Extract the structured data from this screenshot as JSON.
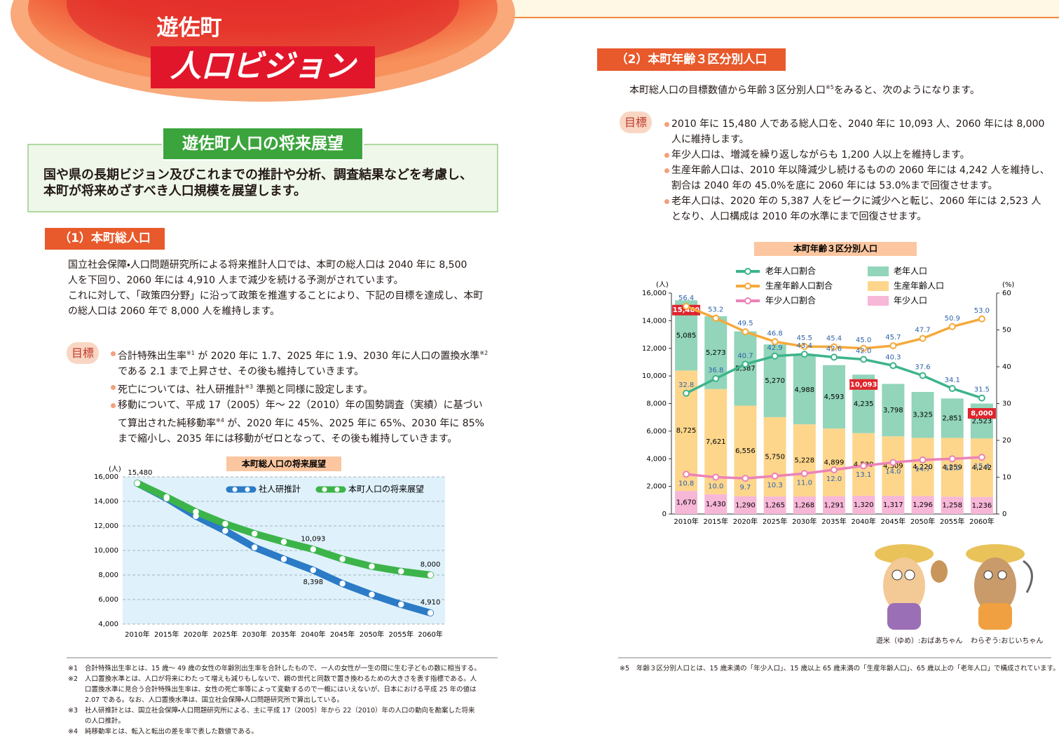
{
  "header": {
    "title_line1": "遊佐町",
    "title_line2": "人口ビジョン"
  },
  "outlook": {
    "heading": "遊佐町人口の将来展望",
    "lines": [
      [
        "国や県の長期ビジョン及びこれまでの推計や分析、調査結果などを考慮し、"
      ],
      [
        "本町が将来めざすべき人口規模を展望します。"
      ]
    ]
  },
  "section1": {
    "heading": "（1）本町総人口",
    "paragraph": [
      [
        "国立社会保障・人口問題研究所による将来推計人口では、本町の総人口は 2040 年に 8,500"
      ],
      [
        "人を下回り、2060 年には 4,910 人まで減少を続ける予測がされています。"
      ],
      [
        "これに対して、「政策四分野」に沿って政策を推進することにより、下記の目標を達成し、本町"
      ],
      [
        "の総人口は 2060 年で 8,000 人を維持します。"
      ]
    ],
    "goal_label": "目標",
    "goals": [
      [
        [
          "合計特殊出生率",
          "※1",
          " が 2020 年に 1.7、2025 年に 1.9、2030 年に人口の置換水準",
          "※2"
        ],
        [
          "である 2.1 まで上昇させ、その後も維持していきます。"
        ]
      ],
      [
        [
          "死亡については、社人研推計",
          "※3",
          " 準拠と同様に設定します。"
        ]
      ],
      [
        [
          "移動について、平成 17（2005）年～ 22（2010）年の国勢調査（実績）に基づい"
        ],
        [
          "て算出された純移動率",
          "※4",
          " が、2020 年に 45%、2025 年に 65%、2030 年に 85%"
        ],
        [
          "まで縮小し、2035 年には移動がゼロとなって、その後も維持していきます。"
        ]
      ]
    ]
  },
  "chart_data": [
    {
      "type": "line",
      "title": "本町総人口の将来展望",
      "y_unit": "(人)",
      "categories": [
        "2010年",
        "2015年",
        "2020年",
        "2025年",
        "2030年",
        "2035年",
        "2040年",
        "2045年",
        "2050年",
        "2055年",
        "2060年"
      ],
      "series": [
        {
          "name": "社人研推計",
          "color": "#2b7bc6",
          "values": [
            15480,
            14250,
            12800,
            11600,
            10250,
            9300,
            8398,
            7300,
            6400,
            5600,
            4910
          ],
          "value_labels": [
            null,
            null,
            null,
            null,
            null,
            null,
            "8,398",
            null,
            null,
            null,
            "4,910"
          ]
        },
        {
          "name": "本町人口の将来展望",
          "color": "#3cb44a",
          "values": [
            15480,
            14350,
            13150,
            12170,
            11370,
            10700,
            10093,
            9300,
            8700,
            8300,
            8000
          ],
          "value_labels": [
            "15,480",
            null,
            null,
            null,
            null,
            null,
            "10,093",
            null,
            null,
            null,
            "8,000"
          ]
        }
      ],
      "ylim": [
        4000,
        16000
      ],
      "yticks": [
        {
          "value": 4000,
          "label": "4,000"
        },
        {
          "value": 6000,
          "label": "6,000"
        },
        {
          "value": 8000,
          "label": "8,000"
        },
        {
          "value": 10000,
          "label": "10,000"
        },
        {
          "value": 12000,
          "label": "12,000"
        },
        {
          "value": 14000,
          "label": "14,000"
        },
        {
          "value": 16000,
          "label": "16,000"
        }
      ],
      "grid": true,
      "legend": "upper right"
    },
    {
      "type": "bar_line",
      "title": "本町年齢３区分別人口",
      "y_unit": "(人)",
      "y2_unit": "(%)",
      "categories": [
        "2010年",
        "2015年",
        "2020年",
        "2025年",
        "2030年",
        "2035年",
        "2040年",
        "2045年",
        "2050年",
        "2055年",
        "2060年"
      ],
      "series": [
        {
          "name": "年少人口",
          "type": "bar",
          "color": "#f7b7d7",
          "values": [
            1670,
            1430,
            1290,
            1265,
            1268,
            1291,
            1320,
            1317,
            1296,
            1258,
            1236
          ],
          "value_labels": [
            "1,670",
            "1,430",
            "1,290",
            "1,265",
            "1,268",
            "1,291",
            "1,320",
            "1,317",
            "1,296",
            "1,258",
            "1,236"
          ]
        },
        {
          "name": "生産年齢人口",
          "type": "bar",
          "color": "#fdd68c",
          "values": [
            8725,
            7621,
            6556,
            5750,
            5228,
            4899,
            4539,
            4309,
            4220,
            4259,
            4242
          ],
          "value_labels": [
            "8,725",
            "7,621",
            "6,556",
            "5,750",
            "5,228",
            "4,899",
            "4,539",
            "4,309",
            "4,220",
            "4,259",
            "4,242"
          ]
        },
        {
          "name": "老年人口",
          "type": "bar",
          "color": "#92d5ba",
          "values": [
            5085,
            5273,
            5387,
            5270,
            4988,
            4593,
            4235,
            3798,
            3325,
            2851,
            2523
          ],
          "value_labels": [
            "5,085",
            "5,273",
            "5,387",
            "5,270",
            "4,988",
            "4,593",
            "4,235",
            "3,798",
            "3,325",
            "2,851",
            "2,523"
          ]
        },
        {
          "name": "年少人口割合",
          "type": "line",
          "axis": "y2",
          "color": "#ec82b8",
          "values": [
            10.8,
            10.0,
            9.7,
            10.3,
            11.0,
            12.0,
            13.1,
            14.0,
            14.7,
            15.0,
            15.4
          ],
          "value_labels": [
            "10.8",
            "10.0",
            "9.7",
            "10.3",
            "11.0",
            "12.0",
            "13.1",
            "14.0",
            "14.7",
            "15.0",
            "15.4"
          ]
        },
        {
          "name": "生産年齢人口割合",
          "type": "line",
          "axis": "y2",
          "color": "#f5a93b",
          "values": [
            56.4,
            53.2,
            49.5,
            46.8,
            45.5,
            45.4,
            45.0,
            45.7,
            47.7,
            50.9,
            53.0
          ],
          "value_labels": [
            "56.4",
            "53.2",
            "49.5",
            "46.8",
            "45.5",
            "45.4",
            "45.0",
            "45.7",
            "47.7",
            "50.9",
            "53.0"
          ]
        },
        {
          "name": "老年人口割合",
          "type": "line",
          "axis": "y2",
          "color": "#3db48b",
          "values": [
            32.8,
            36.8,
            40.7,
            42.9,
            43.4,
            42.6,
            42.0,
            40.3,
            37.6,
            34.1,
            31.5
          ],
          "value_labels": [
            "32.8",
            "36.8",
            "40.7",
            "42.9",
            "43.4",
            "42.6",
            "42.0",
            "40.3",
            "37.6",
            "34.1",
            "31.5"
          ]
        }
      ],
      "totals": [
        15480,
        null,
        null,
        null,
        null,
        null,
        10093,
        null,
        null,
        null,
        8000
      ],
      "total_labels": [
        "15,480",
        null,
        null,
        null,
        null,
        null,
        "10,093",
        null,
        null,
        null,
        "8,000"
      ],
      "ylim": [
        0,
        16000
      ],
      "yticks": [
        0,
        {
          "value": 2000,
          "label": "2,000"
        },
        {
          "value": 4000,
          "label": "4,000"
        },
        {
          "value": 6000,
          "label": "6,000"
        },
        {
          "value": 8000,
          "label": "8,000"
        },
        {
          "value": 10000,
          "label": "10,000"
        },
        {
          "value": 12000,
          "label": "12,000"
        },
        {
          "value": 14000,
          "label": "14,000"
        },
        {
          "value": 16000,
          "label": "16,000"
        }
      ],
      "y2lim": [
        0,
        60
      ],
      "y2ticks": [
        0,
        10,
        20,
        30,
        40,
        50,
        60
      ],
      "grid": false,
      "legend": "top"
    }
  ],
  "footnotes_left": [
    {
      "mark": "※1",
      "lines": [
        "合計特殊出生率とは、15 歳～ 49 歳の女性の年齢別出生率を合計したもので、一人の女性が一生の間に生む子どもの数に相当する。"
      ]
    },
    {
      "mark": "※2",
      "lines": [
        "人口置換水準とは、人口が将来にわたって増えも減りもしないで、親の世代と同数で置き換わるための大きさを表す指標である。人",
        "口置換水準に見合う合計特殊出生率は、女性の死亡率等によって変動するので一概にはいえないが、日本における平成 25 年の値は",
        "2.07 である。なお、人口置換水準は、国立社会保障・人口問題研究所で算出している。"
      ]
    },
    {
      "mark": "※3",
      "lines": [
        "社人研推計とは、国立社会保障・人口問題研究所による、主に平成 17（2005）年から 22（2010）年の人口の動向を勘案した将来",
        "の人口推計。"
      ]
    },
    {
      "mark": "※4",
      "lines": [
        "純移動率とは、転入と転出の差を率で表した数値である。"
      ]
    }
  ],
  "section2": {
    "heading": "（2）本町年齢３区分別人口",
    "intro": [
      [
        "本町総人口の目標数値から年齢３区分別人口",
        "※5",
        "をみると、次のようになります。"
      ]
    ],
    "goal_label": "目標",
    "goals": [
      [
        [
          "2010 年に 15,480 人である総人口を、2040 年に 10,093 人、2060 年には 8,000"
        ],
        [
          "人に維持します。"
        ]
      ],
      [
        [
          "年少人口は、増減を繰り返しながらも 1,200 人以上を維持します。"
        ]
      ],
      [
        [
          "生産年齢人口は、2010 年以降減少し続けるものの 2060 年には 4,242 人を維持し、"
        ],
        [
          "割合は 2040 年の 45.0%を底に 2060 年には 53.0%まで回復させます。"
        ]
      ],
      [
        [
          "老年人口は、2020 年の 5,387 人をピークに減少へと転じ、2060 年には 2,523 人"
        ],
        [
          "となり、人口構成は 2010 年の水準にまで回復させます。"
        ]
      ]
    ]
  },
  "characters": [
    "遊米（ゆめ）:おばあちゃん",
    "わらぞう:おじいちゃん"
  ],
  "footnotes_right": [
    {
      "mark": "※5",
      "lines": [
        "年齢３区分別人口とは、15 歳未満の「年少人口」、15 歳以上 65 歳未満の「生産年齢人口」、65 歳以上の「老年人口」で構成されています。"
      ]
    }
  ]
}
